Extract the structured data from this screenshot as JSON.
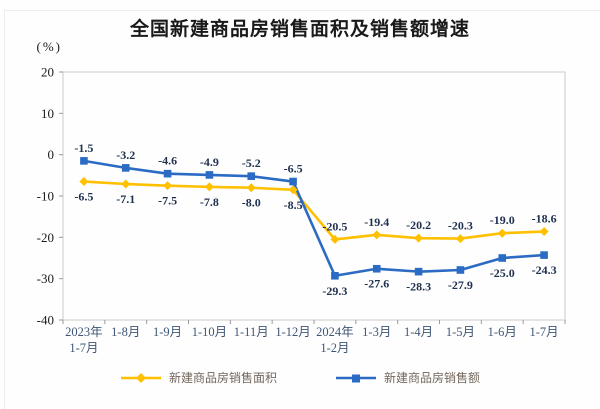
{
  "chart_data": {
    "type": "line",
    "title": "全国新建商品房销售面积及销售额增速",
    "unit_label": "(%)",
    "categories": [
      "2023年\n1-7月",
      "1-8月",
      "1-9月",
      "1-10月",
      "1-11月",
      "1-12月",
      "2024年\n1-2月",
      "1-3月",
      "1-4月",
      "1-5月",
      "1-6月",
      "1-7月"
    ],
    "ylim": [
      -40,
      20
    ],
    "yticks": [
      20,
      10,
      0,
      -10,
      -20,
      -30,
      -40
    ],
    "grid": false,
    "legend_position": "bottom",
    "series": [
      {
        "id": "sales-area",
        "name": "新建商品房销售面积",
        "color": "#FFC000",
        "marker": "diamond",
        "values": [
          -6.5,
          -7.1,
          -7.5,
          -7.8,
          -8.0,
          -8.5,
          -20.5,
          -19.4,
          -20.2,
          -20.3,
          -19.0,
          -18.6
        ],
        "value_labels": [
          "-6.5",
          "-7.1",
          "-7.5",
          "-7.8",
          "-8.0",
          "-8.5",
          "-20.5",
          "-19.4",
          "-20.2",
          "-20.3",
          "-19.0",
          "-18.6"
        ]
      },
      {
        "id": "sales-amount",
        "name": "新建商品房销售额",
        "color": "#2B6BC4",
        "marker": "square",
        "values": [
          -1.5,
          -3.2,
          -4.6,
          -4.9,
          -5.2,
          -6.5,
          -29.3,
          -27.6,
          -28.3,
          -27.9,
          -25.0,
          -24.3
        ],
        "value_labels": [
          "-1.5",
          "-3.2",
          "-4.6",
          "-4.9",
          "-5.2",
          "-6.5",
          "-29.3",
          "-27.6",
          "-28.3",
          "-27.9",
          "-25.0",
          "-24.3"
        ]
      }
    ],
    "axis_border_color": "#c9c9c9",
    "tick_color": "#9a9a9a"
  }
}
